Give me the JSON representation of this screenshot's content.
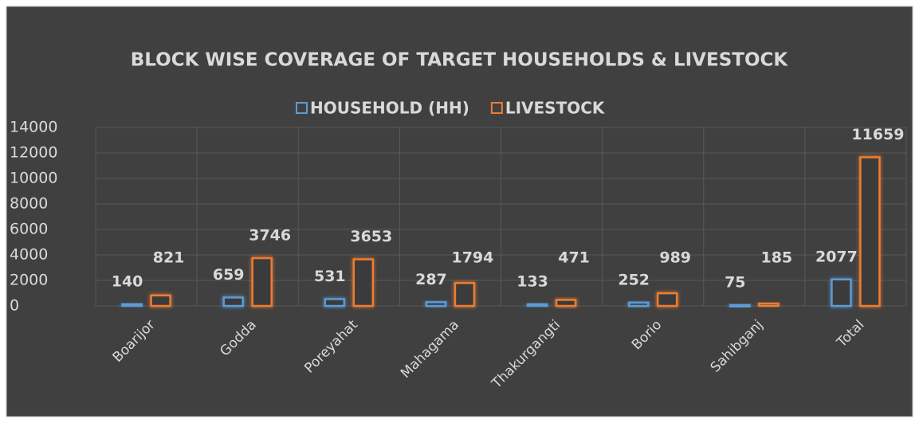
{
  "chart_data": {
    "type": "bar",
    "title": "BLOCK WISE COVERAGE OF TARGET HOUSEHOLDS & LIVESTOCK",
    "categories": [
      "Boarijor",
      "Godda",
      "Poreyahat",
      "Mahagama",
      "Thakurgangti",
      "Borio",
      "Sahibganj",
      "Total"
    ],
    "series": [
      {
        "name": "HOUSEHOLD (HH)",
        "color": "#5b9bd5",
        "values": [
          140,
          659,
          531,
          287,
          133,
          252,
          75,
          2077
        ]
      },
      {
        "name": "LIVESTOCK",
        "color": "#ed7d31",
        "values": [
          821,
          3746,
          3653,
          1794,
          471,
          989,
          185,
          11659
        ]
      }
    ],
    "ylim": [
      0,
      14000
    ],
    "yticks": [
      0,
      2000,
      4000,
      6000,
      8000,
      10000,
      12000,
      14000
    ],
    "grid": true
  }
}
